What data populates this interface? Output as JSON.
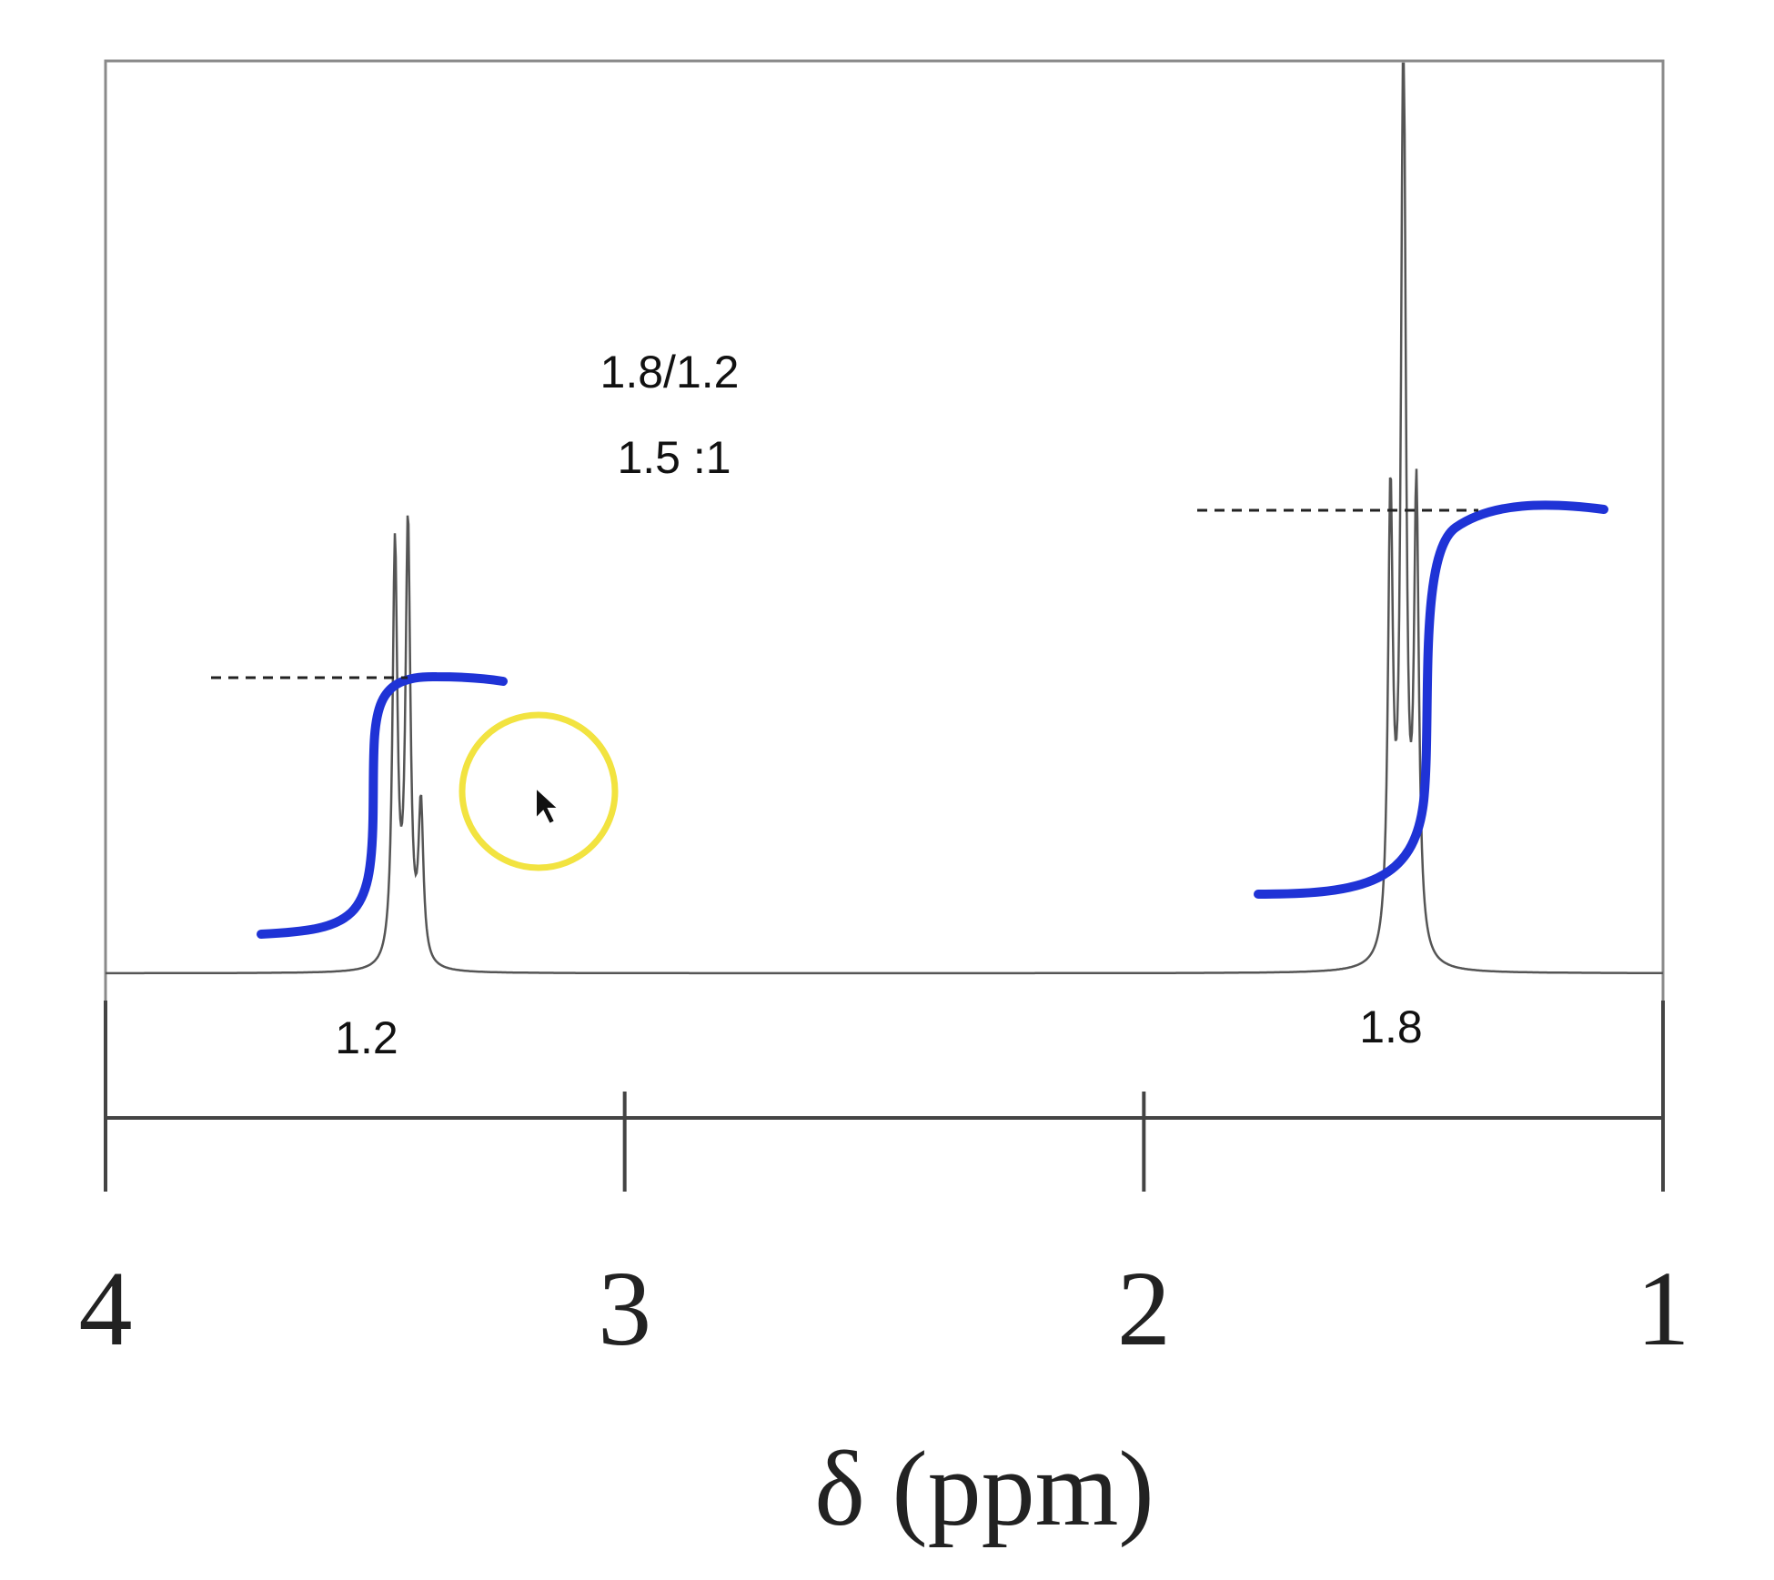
{
  "chart_data": {
    "type": "line",
    "xlabel": "δ (ppm)",
    "xlim": [
      4,
      1
    ],
    "x_ticks": [
      {
        "value": 4,
        "label": "4"
      },
      {
        "value": 3,
        "label": "3"
      },
      {
        "value": 2,
        "label": "2"
      },
      {
        "value": 1,
        "label": "1"
      }
    ],
    "grid": false,
    "peaks": [
      {
        "label": "1.2",
        "multiplet": "quartet",
        "center_ppm": 3.43,
        "spacing_ppm": 0.025,
        "relative_heights": [
          0.0,
          0.92,
          0.96,
          0.34
        ],
        "integral_step": 0.63
      },
      {
        "label": "1.8",
        "multiplet": "triplet",
        "center_ppm": 1.5,
        "spacing_ppm": 0.025,
        "relative_heights": [
          1.0,
          2.05,
          1.0
        ],
        "integral_step": 0.94
      }
    ],
    "annotations": [
      {
        "id": "ratio",
        "text": "1.8/1.2"
      },
      {
        "id": "ratio-value",
        "text": "1.5 :1"
      }
    ],
    "colors": {
      "spectrum": "#555555",
      "integral": "#1f33d6",
      "cursor_ring": "#f2e340",
      "axis": "#444444"
    },
    "cursor_icon": "mouse-pointer-icon"
  }
}
